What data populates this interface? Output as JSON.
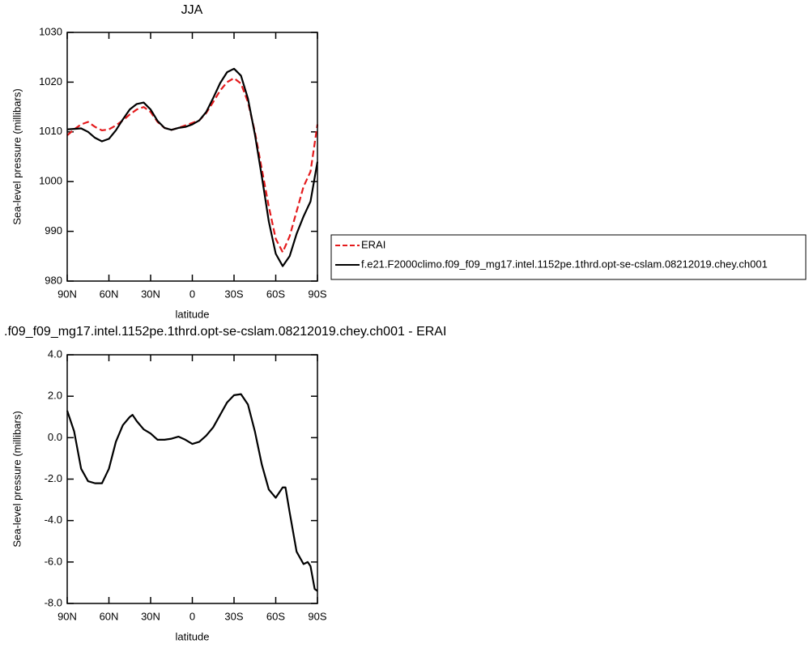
{
  "chart_data": [
    {
      "type": "line",
      "title": "JJA",
      "x_label": "latitude",
      "y_label": "Sea-level pressure (millibars)",
      "x": [
        90,
        85,
        80,
        75,
        70,
        65,
        60,
        55,
        50,
        45,
        40,
        35,
        30,
        25,
        20,
        15,
        10,
        5,
        0,
        -5,
        -10,
        -15,
        -20,
        -25,
        -30,
        -35,
        -40,
        -45,
        -50,
        -55,
        -60,
        -65,
        -70,
        -75,
        -80,
        -85,
        -90
      ],
      "series": [
        {
          "name": "ERAI",
          "color": "#e41a1c",
          "dashed": true,
          "values": [
            1009.3,
            1010.5,
            1011.5,
            1012,
            1011,
            1010.3,
            1010.5,
            1011.3,
            1012.3,
            1013.5,
            1014.5,
            1015,
            1014,
            1012,
            1010.8,
            1010.4,
            1010.8,
            1011.3,
            1011.8,
            1012.3,
            1013.8,
            1016,
            1018.3,
            1020,
            1020.8,
            1019.7,
            1016,
            1010,
            1002.5,
            995,
            988.5,
            985.8,
            989,
            994,
            999,
            1002,
            1011.5
          ]
        },
        {
          "name": "f.e21.F2000climo.f09_f09_mg17.intel.1152pe.1thrd.opt-se-cslam.08212019.chey.ch001",
          "color": "#000000",
          "dashed": false,
          "values": [
            1010.5,
            1010.6,
            1010.7,
            1010,
            1008.8,
            1008.1,
            1008.6,
            1010.3,
            1012.5,
            1014.5,
            1015.6,
            1015.9,
            1014.5,
            1012.2,
            1010.8,
            1010.4,
            1010.8,
            1011,
            1011.5,
            1012.3,
            1014,
            1016.8,
            1019.8,
            1022,
            1022.7,
            1021.3,
            1016.7,
            1009.5,
            1001,
            992,
            985.5,
            983,
            985,
            989.5,
            993,
            996,
            1004
          ]
        }
      ],
      "xlim": [
        90,
        -90
      ],
      "xticks": [
        {
          "value": 90,
          "label": "90N"
        },
        {
          "value": 60,
          "label": "60N"
        },
        {
          "value": 30,
          "label": "30N"
        },
        0,
        {
          "value": -30,
          "label": "30S"
        },
        {
          "value": -60,
          "label": "60S"
        },
        {
          "value": -90,
          "label": "90S"
        }
      ],
      "ylim": [
        980,
        1030
      ],
      "yticks": [
        980,
        990,
        1000,
        1010,
        1020,
        1030
      ]
    },
    {
      "type": "line",
      "title": ".f09_f09_mg17.intel.1152pe.1thrd.opt-se-cslam.08212019.chey.ch001 - ERAI",
      "x_label": "latitude",
      "y_label": "Sea-level pressure (millibars)",
      "x": [
        90,
        85,
        80,
        75,
        70,
        65,
        60,
        55,
        50,
        45,
        43,
        40,
        35,
        30,
        25,
        20,
        15,
        10,
        5,
        0,
        -5,
        -10,
        -15,
        -20,
        -25,
        -30,
        -35,
        -40,
        -45,
        -50,
        -55,
        -60,
        -65,
        -67,
        -70,
        -75,
        -80,
        -83,
        -85,
        -88,
        -90
      ],
      "series": [
        {
          "color": "#000000",
          "dashed": false,
          "values": [
            1.3,
            0.3,
            -1.5,
            -2.1,
            -2.2,
            -2.2,
            -1.5,
            -0.2,
            0.6,
            1.0,
            1.1,
            0.8,
            0.4,
            0.2,
            -0.1,
            -0.1,
            -0.05,
            0.05,
            -0.1,
            -0.3,
            -0.2,
            0.1,
            0.5,
            1.1,
            1.7,
            2.05,
            2.1,
            1.6,
            0.3,
            -1.3,
            -2.5,
            -2.9,
            -2.4,
            -2.4,
            -3.6,
            -5.5,
            -6.1,
            -6.0,
            -6.2,
            -7.3,
            -7.4
          ]
        }
      ],
      "xlim": [
        90,
        -90
      ],
      "xticks": [
        {
          "value": 90,
          "label": "90N"
        },
        {
          "value": 60,
          "label": "60N"
        },
        {
          "value": 30,
          "label": "30N"
        },
        0,
        {
          "value": -30,
          "label": "30S"
        },
        {
          "value": -60,
          "label": "60S"
        },
        {
          "value": -90,
          "label": "90S"
        }
      ],
      "ylim": [
        -8,
        4
      ],
      "yticks": [
        {
          "value": -8,
          "label": "-8.0"
        },
        {
          "value": -6,
          "label": "-6.0"
        },
        {
          "value": -4,
          "label": "-4.0"
        },
        {
          "value": -2,
          "label": "-2.0"
        },
        {
          "value": 0,
          "label": "0.0"
        },
        {
          "value": 2,
          "label": "2.0"
        },
        {
          "value": 4,
          "label": "4.0"
        }
      ]
    }
  ]
}
